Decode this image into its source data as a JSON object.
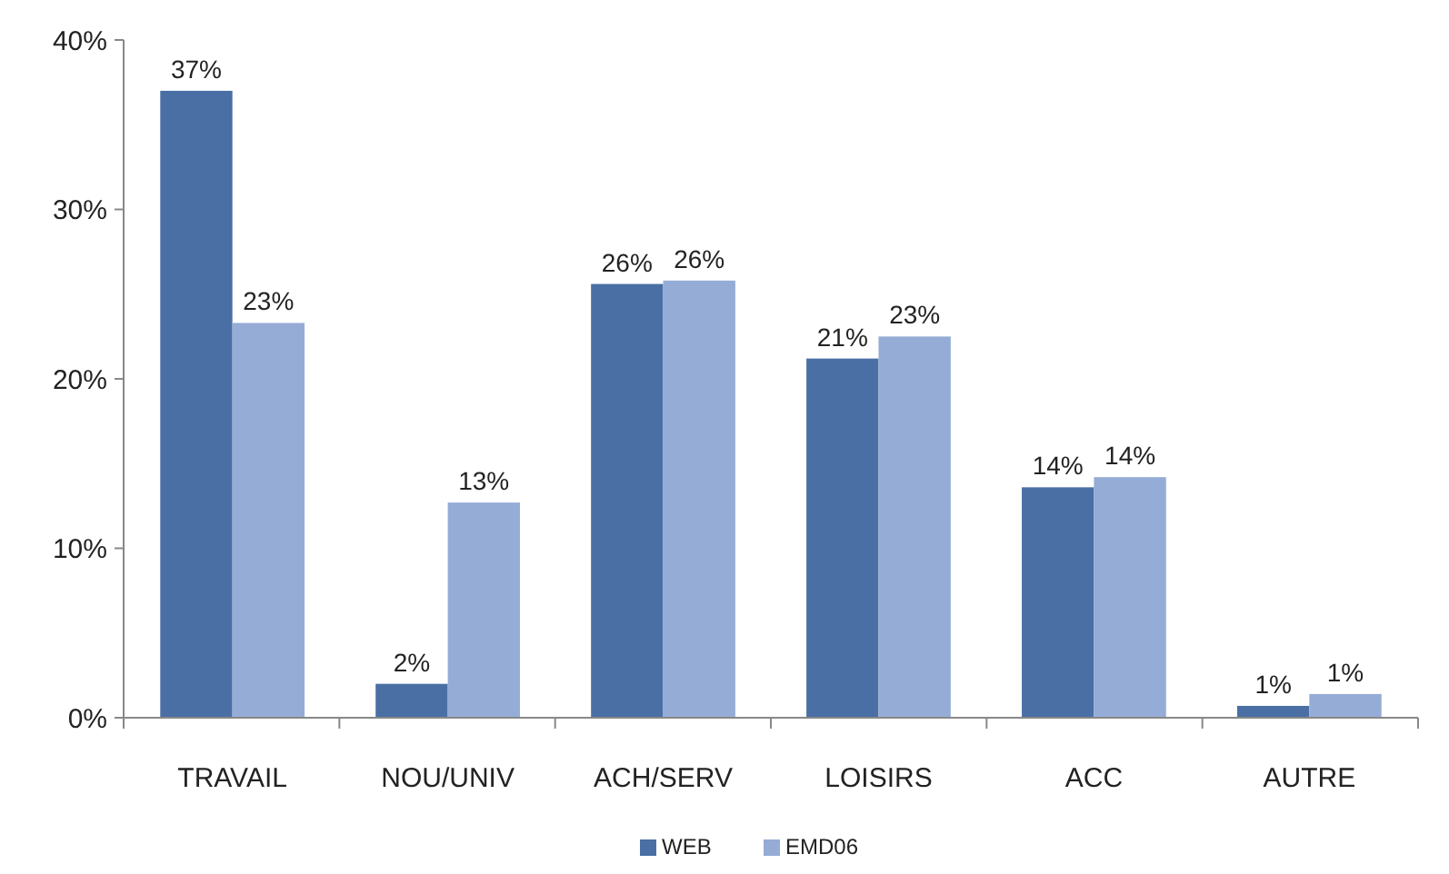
{
  "chart_data": {
    "type": "bar",
    "categories": [
      "TRAVAIL",
      "NOU/UNIV",
      "ACH/SERV",
      "LOISIRS",
      "ACC",
      "AUTRE"
    ],
    "series": [
      {
        "name": "WEB",
        "color": "#4a6fa5",
        "values": [
          37,
          2,
          25.6,
          21.2,
          13.6,
          0.7
        ],
        "value_labels": [
          "37%",
          "2%",
          "26%",
          "21%",
          "14%",
          "1%"
        ]
      },
      {
        "name": "EMD06",
        "color": "#95acd6",
        "values": [
          23.3,
          12.7,
          25.8,
          22.5,
          14.2,
          1.4
        ],
        "value_labels": [
          "23%",
          "13%",
          "26%",
          "23%",
          "14%",
          "1%"
        ]
      }
    ],
    "ylim": [
      0,
      40
    ],
    "yticks": [
      {
        "value": 0,
        "label": "0%"
      },
      {
        "value": 10,
        "label": "10%"
      },
      {
        "value": 20,
        "label": "20%"
      },
      {
        "value": 30,
        "label": "30%"
      },
      {
        "value": 40,
        "label": "40%"
      }
    ],
    "grid": false,
    "legend": "bottom"
  }
}
